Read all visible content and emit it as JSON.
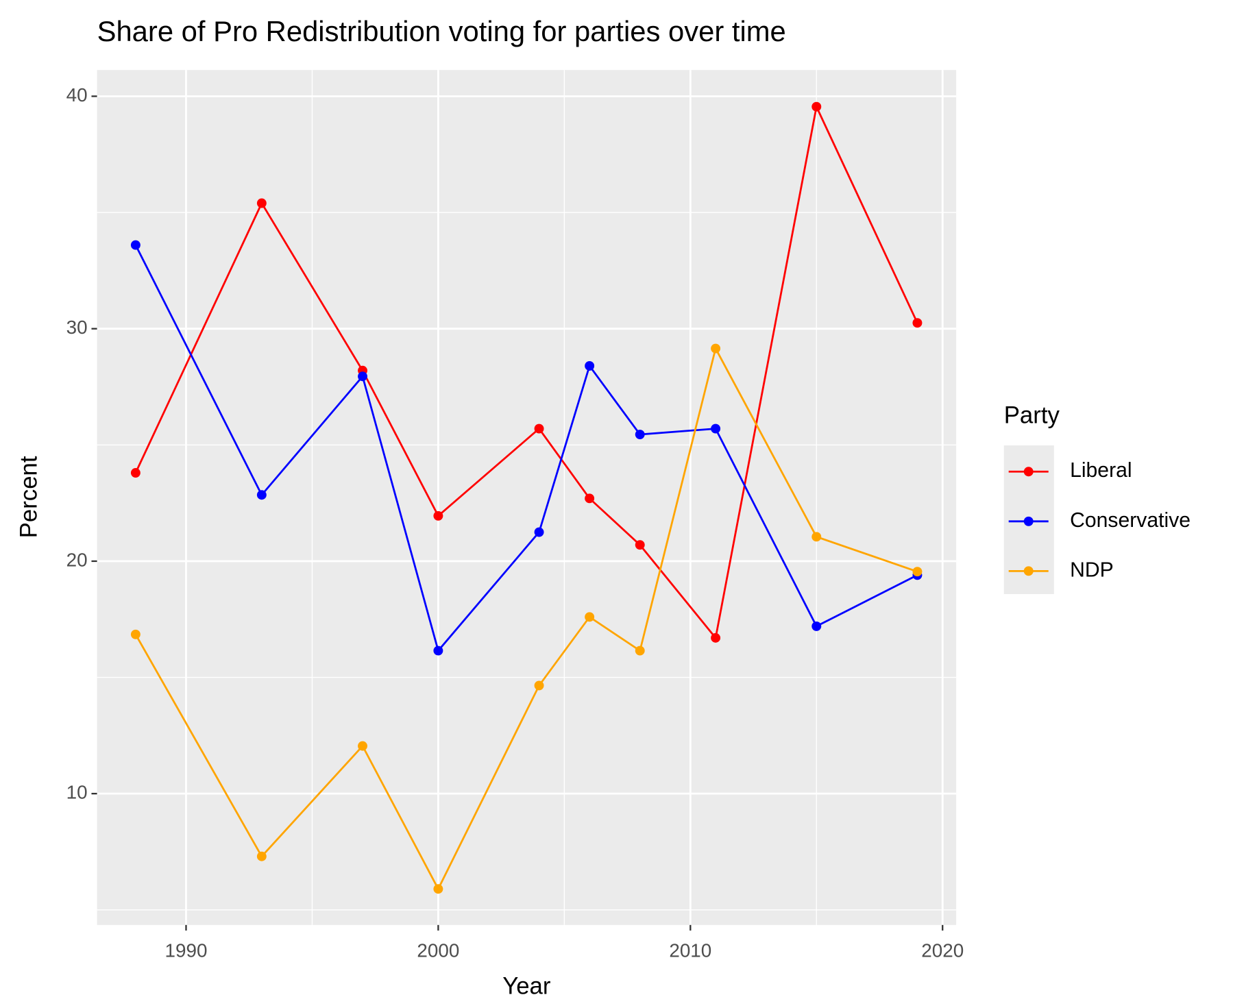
{
  "chart_data": {
    "type": "line",
    "title": "Share of Pro Redistribution voting for parties over time",
    "x_label": "Year",
    "y_label": "Percent",
    "legend_title": "Party",
    "legend_position": "right",
    "grid": true,
    "x": [
      1988,
      1993,
      1997,
      2000,
      2004,
      2006,
      2008,
      2011,
      2015,
      2019
    ],
    "series": [
      {
        "name": "Liberal",
        "color": "#ff0000",
        "values": [
          23.8,
          35.4,
          28.2,
          21.95,
          25.7,
          22.7,
          20.7,
          16.7,
          39.55,
          30.25
        ]
      },
      {
        "name": "Conservative",
        "color": "#0000ff",
        "values": [
          33.6,
          22.85,
          27.95,
          16.15,
          21.25,
          28.4,
          25.45,
          25.7,
          17.2,
          19.4
        ]
      },
      {
        "name": "NDP",
        "color": "#ffa500",
        "values": [
          16.85,
          7.3,
          12.05,
          5.9,
          14.65,
          17.6,
          16.15,
          29.15,
          21.05,
          19.55
        ]
      }
    ],
    "xlim": [
      1986.47,
      2020.54
    ],
    "ylim": [
      4.35,
      41.13
    ],
    "xticks": [
      1990,
      2000,
      2010,
      2020
    ],
    "yticks": [
      10,
      20,
      30,
      40
    ],
    "xminor": [
      1995,
      2005,
      2015
    ],
    "yminor": [
      5,
      15,
      25,
      35
    ]
  }
}
